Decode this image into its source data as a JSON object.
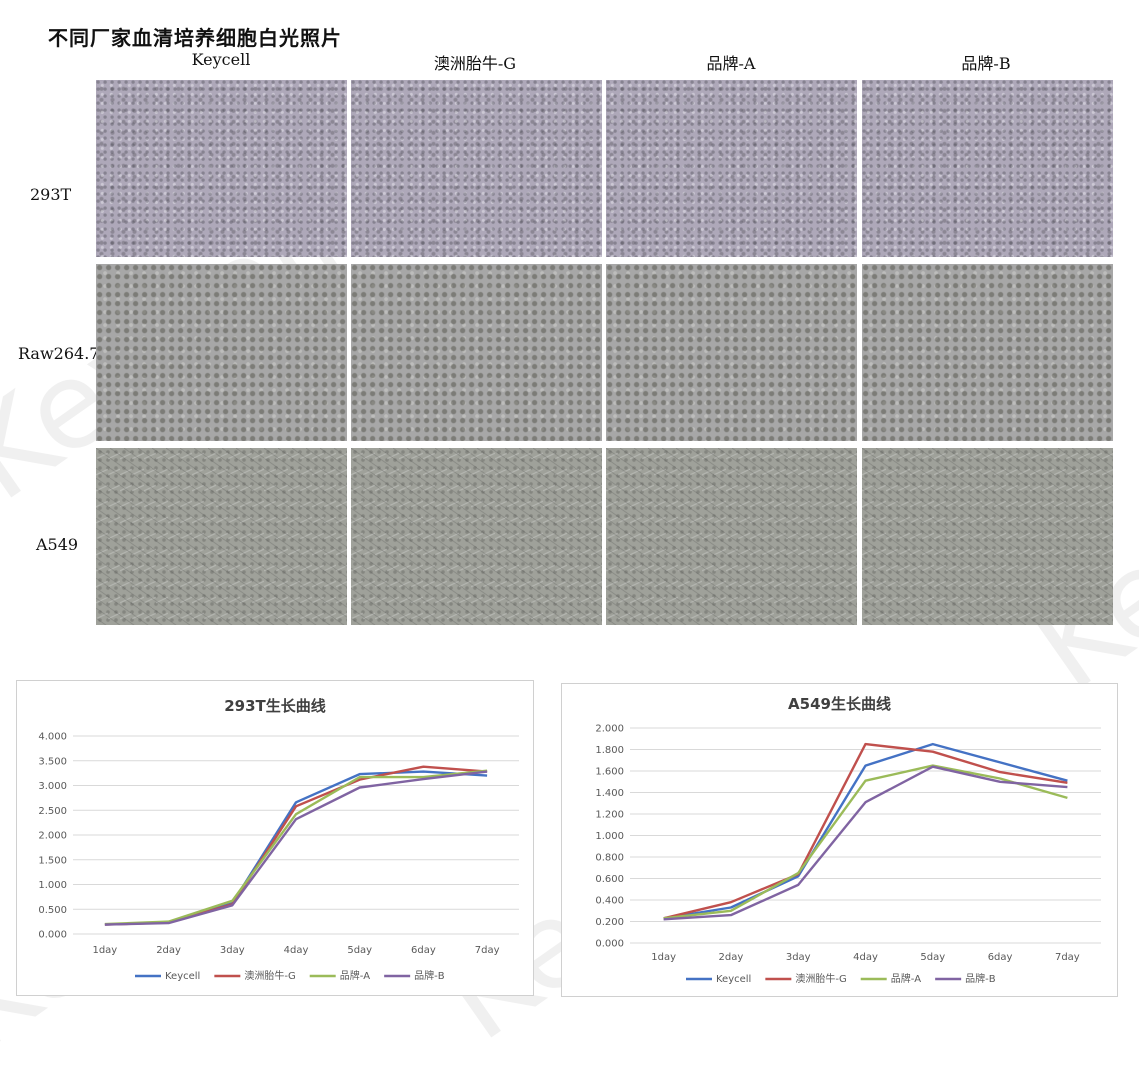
{
  "page": {
    "title": "不同厂家血清培养细胞白光照片",
    "watermark": "Keycell"
  },
  "grid": {
    "columns": [
      "Keycell",
      "澳洲胎牛-G",
      "品牌-A",
      "品牌-B"
    ],
    "rows": [
      "293T",
      "Raw264.7",
      "A549"
    ]
  },
  "chart_data": [
    {
      "type": "line",
      "title": "293T生长曲线",
      "categories": [
        "1day",
        "2day",
        "3day",
        "4day",
        "5day",
        "6day",
        "7day"
      ],
      "ylim": [
        0,
        4
      ],
      "ytick_step": 0.5,
      "ytick_labels": [
        "0.000",
        "0.500",
        "1.000",
        "1.500",
        "2.000",
        "2.500",
        "3.000",
        "3.500",
        "4.000"
      ],
      "grid": true,
      "legend_position": "bottom",
      "series": [
        {
          "name": "Keycell",
          "color": "#4472c4",
          "values": [
            0.19,
            0.24,
            0.62,
            2.66,
            3.23,
            3.28,
            3.2
          ]
        },
        {
          "name": "澳洲胎牛-G",
          "color": "#c0504d",
          "values": [
            0.19,
            0.23,
            0.6,
            2.58,
            3.12,
            3.38,
            3.28
          ]
        },
        {
          "name": "品牌-A",
          "color": "#9bbb59",
          "values": [
            0.2,
            0.25,
            0.67,
            2.42,
            3.17,
            3.17,
            3.3
          ]
        },
        {
          "name": "品牌-B",
          "color": "#8064a2",
          "values": [
            0.19,
            0.22,
            0.58,
            2.32,
            2.96,
            3.13,
            3.28
          ]
        }
      ]
    },
    {
      "type": "line",
      "title": "A549生长曲线",
      "categories": [
        "1day",
        "2day",
        "3day",
        "4day",
        "5day",
        "6day",
        "7day"
      ],
      "ylim": [
        0,
        2
      ],
      "ytick_step": 0.2,
      "ytick_labels": [
        "0.000",
        "0.200",
        "0.400",
        "0.600",
        "0.800",
        "1.000",
        "1.200",
        "1.400",
        "1.600",
        "1.800",
        "2.000"
      ],
      "grid": true,
      "legend_position": "bottom",
      "series": [
        {
          "name": "Keycell",
          "color": "#4472c4",
          "values": [
            0.23,
            0.33,
            0.62,
            1.65,
            1.85,
            1.68,
            1.51
          ]
        },
        {
          "name": "澳洲胎牛-G",
          "color": "#c0504d",
          "values": [
            0.23,
            0.38,
            0.64,
            1.85,
            1.78,
            1.59,
            1.49
          ]
        },
        {
          "name": "品牌-A",
          "color": "#9bbb59",
          "values": [
            0.23,
            0.3,
            0.65,
            1.51,
            1.65,
            1.53,
            1.35
          ]
        },
        {
          "name": "品牌-B",
          "color": "#8064a2",
          "values": [
            0.22,
            0.26,
            0.54,
            1.31,
            1.64,
            1.5,
            1.45
          ]
        }
      ]
    }
  ]
}
